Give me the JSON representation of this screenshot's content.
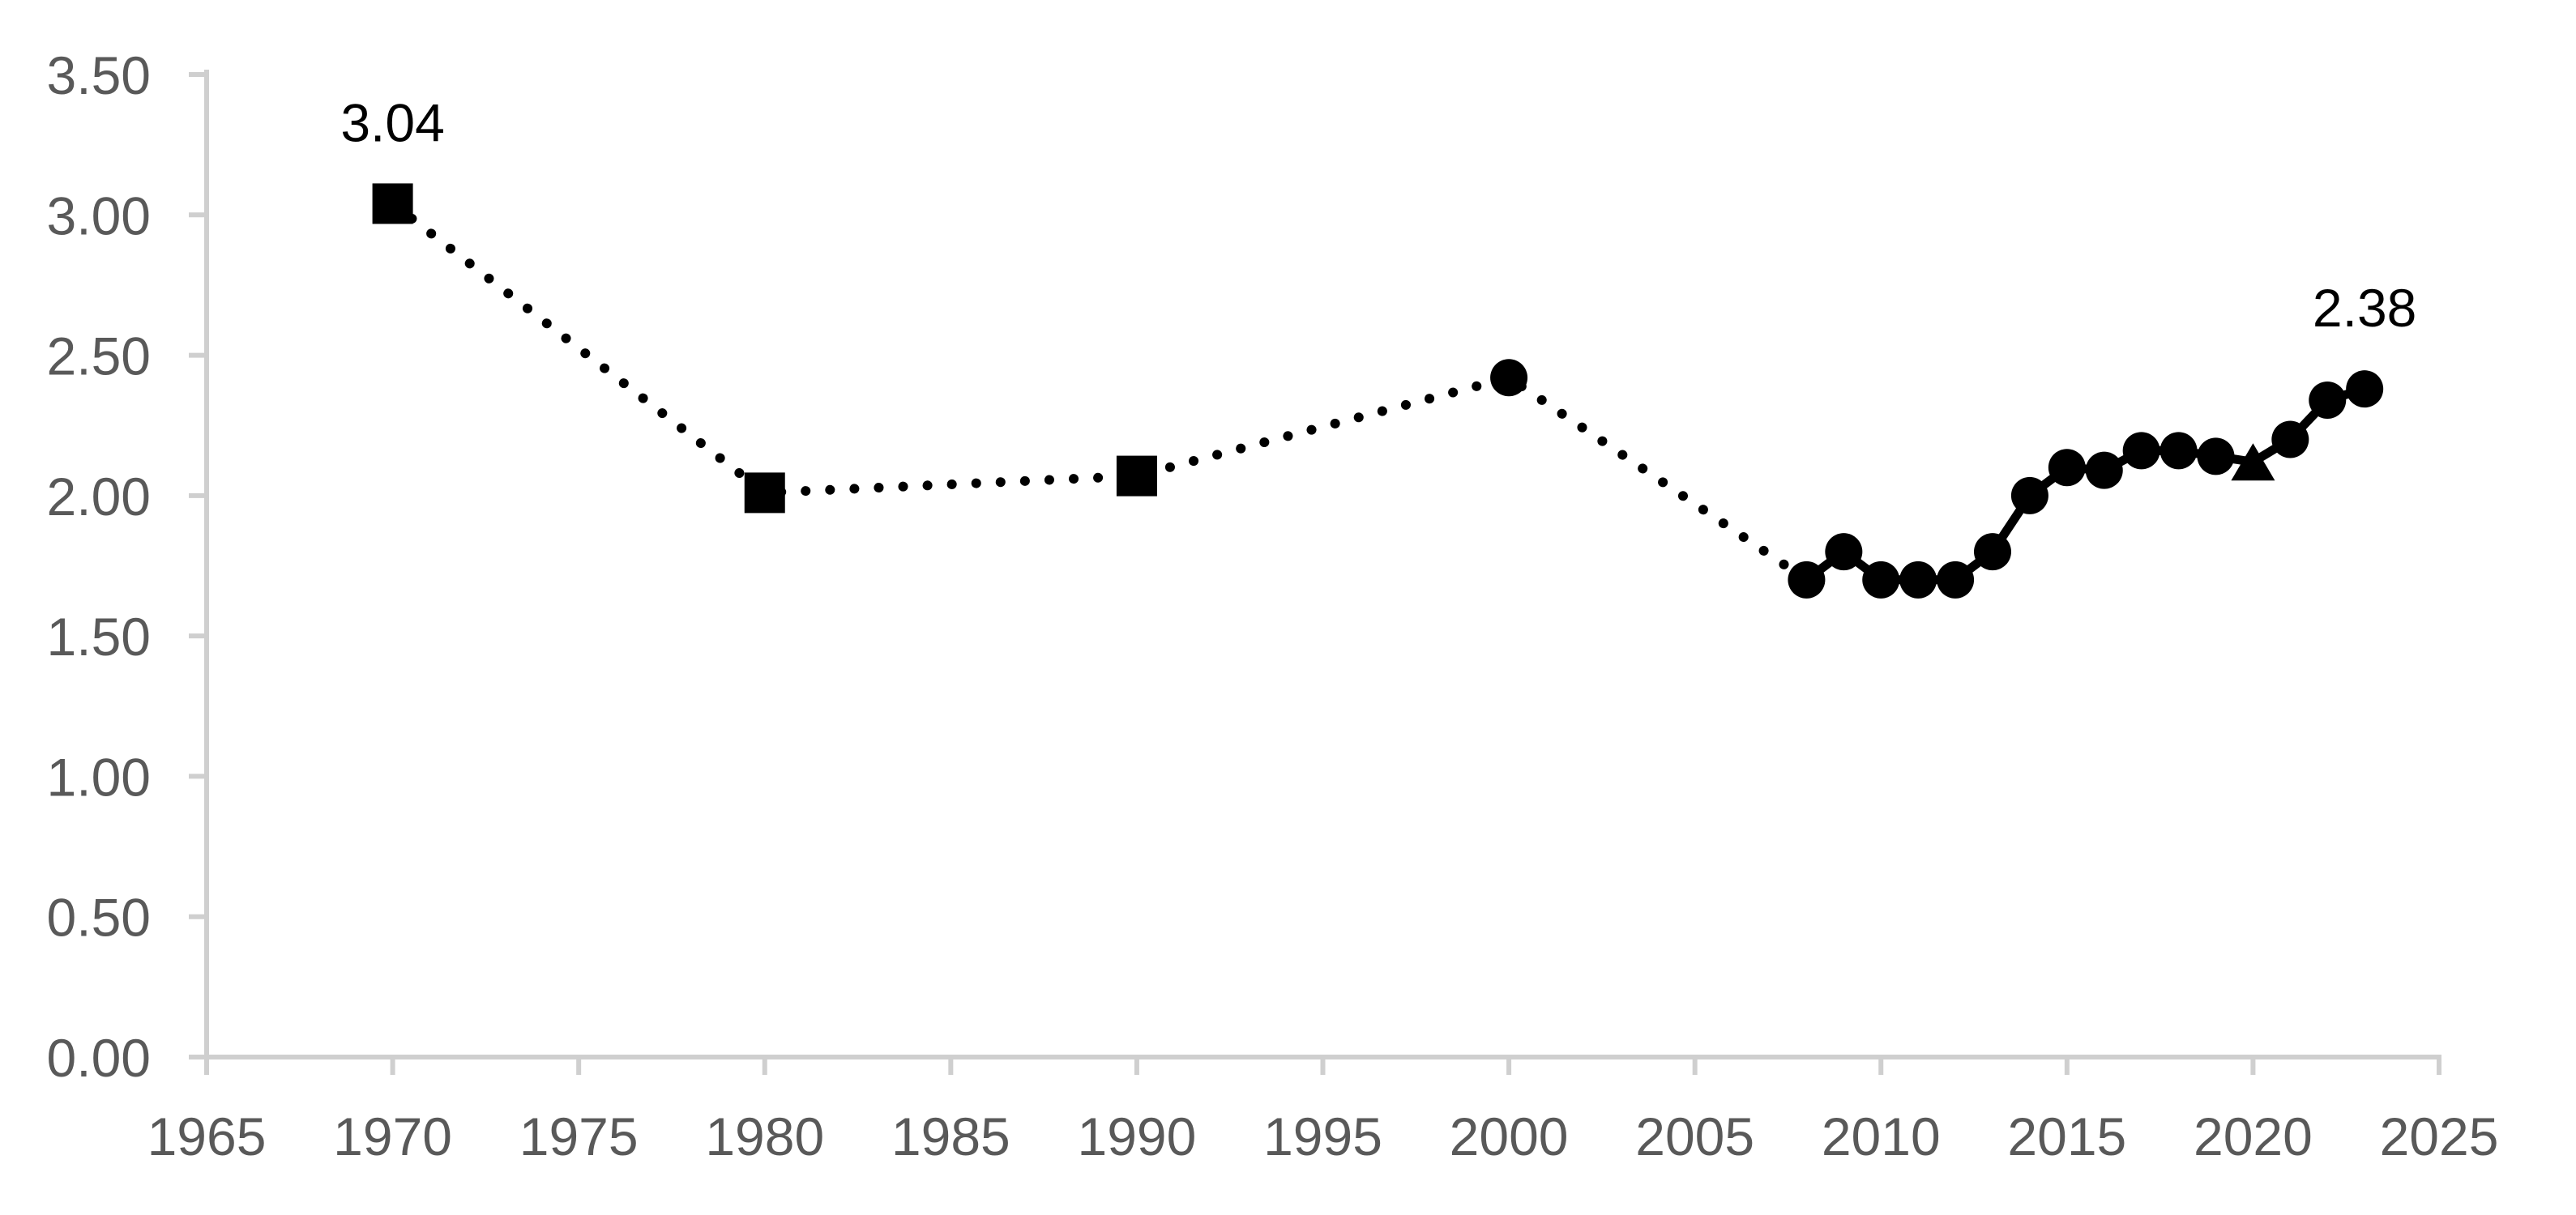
{
  "page": {
    "background": "#ffffff"
  },
  "chart_data": {
    "type": "line",
    "title": "",
    "xlabel": "",
    "ylabel": "",
    "grid": false,
    "legend": "none",
    "colors": {
      "line": "#000000",
      "marker": "#000000",
      "axis": "#cfcfcf",
      "tick_label": "#595959",
      "data_label": "#000000"
    },
    "x_axis": {
      "range": [
        1965,
        2025
      ],
      "tick_step": 5,
      "ticks": [
        "1965",
        "1970",
        "1975",
        "1980",
        "1985",
        "1990",
        "1995",
        "2000",
        "2005",
        "2010",
        "2015",
        "2020",
        "2025"
      ]
    },
    "y_axis": {
      "range": [
        0,
        3.5
      ],
      "tick_step": 0.5,
      "ticks": [
        "0.00",
        "0.50",
        "1.00",
        "1.50",
        "2.00",
        "2.50",
        "3.00",
        "3.50"
      ]
    },
    "series": [
      {
        "name": "historical-decennial",
        "line_style": "dotted",
        "points": [
          {
            "year": 1970,
            "value": 3.04,
            "marker": "square",
            "data_label": "3.04"
          },
          {
            "year": 1980,
            "value": 2.01,
            "marker": "square"
          },
          {
            "year": 1990,
            "value": 2.07,
            "marker": "square"
          },
          {
            "year": 2000,
            "value": 2.42,
            "marker": "circle"
          },
          {
            "year": 2008,
            "value": 1.7,
            "marker": "none"
          }
        ]
      },
      {
        "name": "recent-annual",
        "line_style": "solid",
        "points": [
          {
            "year": 2008,
            "value": 1.7,
            "marker": "circle"
          },
          {
            "year": 2009,
            "value": 1.8,
            "marker": "circle"
          },
          {
            "year": 2010,
            "value": 1.7,
            "marker": "circle"
          },
          {
            "year": 2011,
            "value": 1.7,
            "marker": "circle"
          },
          {
            "year": 2012,
            "value": 1.7,
            "marker": "circle"
          },
          {
            "year": 2013,
            "value": 1.8,
            "marker": "circle"
          },
          {
            "year": 2014,
            "value": 2.0,
            "marker": "circle"
          },
          {
            "year": 2015,
            "value": 2.1,
            "marker": "circle"
          },
          {
            "year": 2016,
            "value": 2.09,
            "marker": "circle"
          },
          {
            "year": 2017,
            "value": 2.16,
            "marker": "circle"
          },
          {
            "year": 2018,
            "value": 2.16,
            "marker": "circle"
          },
          {
            "year": 2019,
            "value": 2.14,
            "marker": "circle"
          },
          {
            "year": 2020,
            "value": 2.12,
            "marker": "triangle"
          },
          {
            "year": 2021,
            "value": 2.2,
            "marker": "circle"
          },
          {
            "year": 2022,
            "value": 2.34,
            "marker": "circle"
          },
          {
            "year": 2023,
            "value": 2.38,
            "marker": "circle",
            "data_label": "2.38"
          }
        ]
      }
    ]
  }
}
